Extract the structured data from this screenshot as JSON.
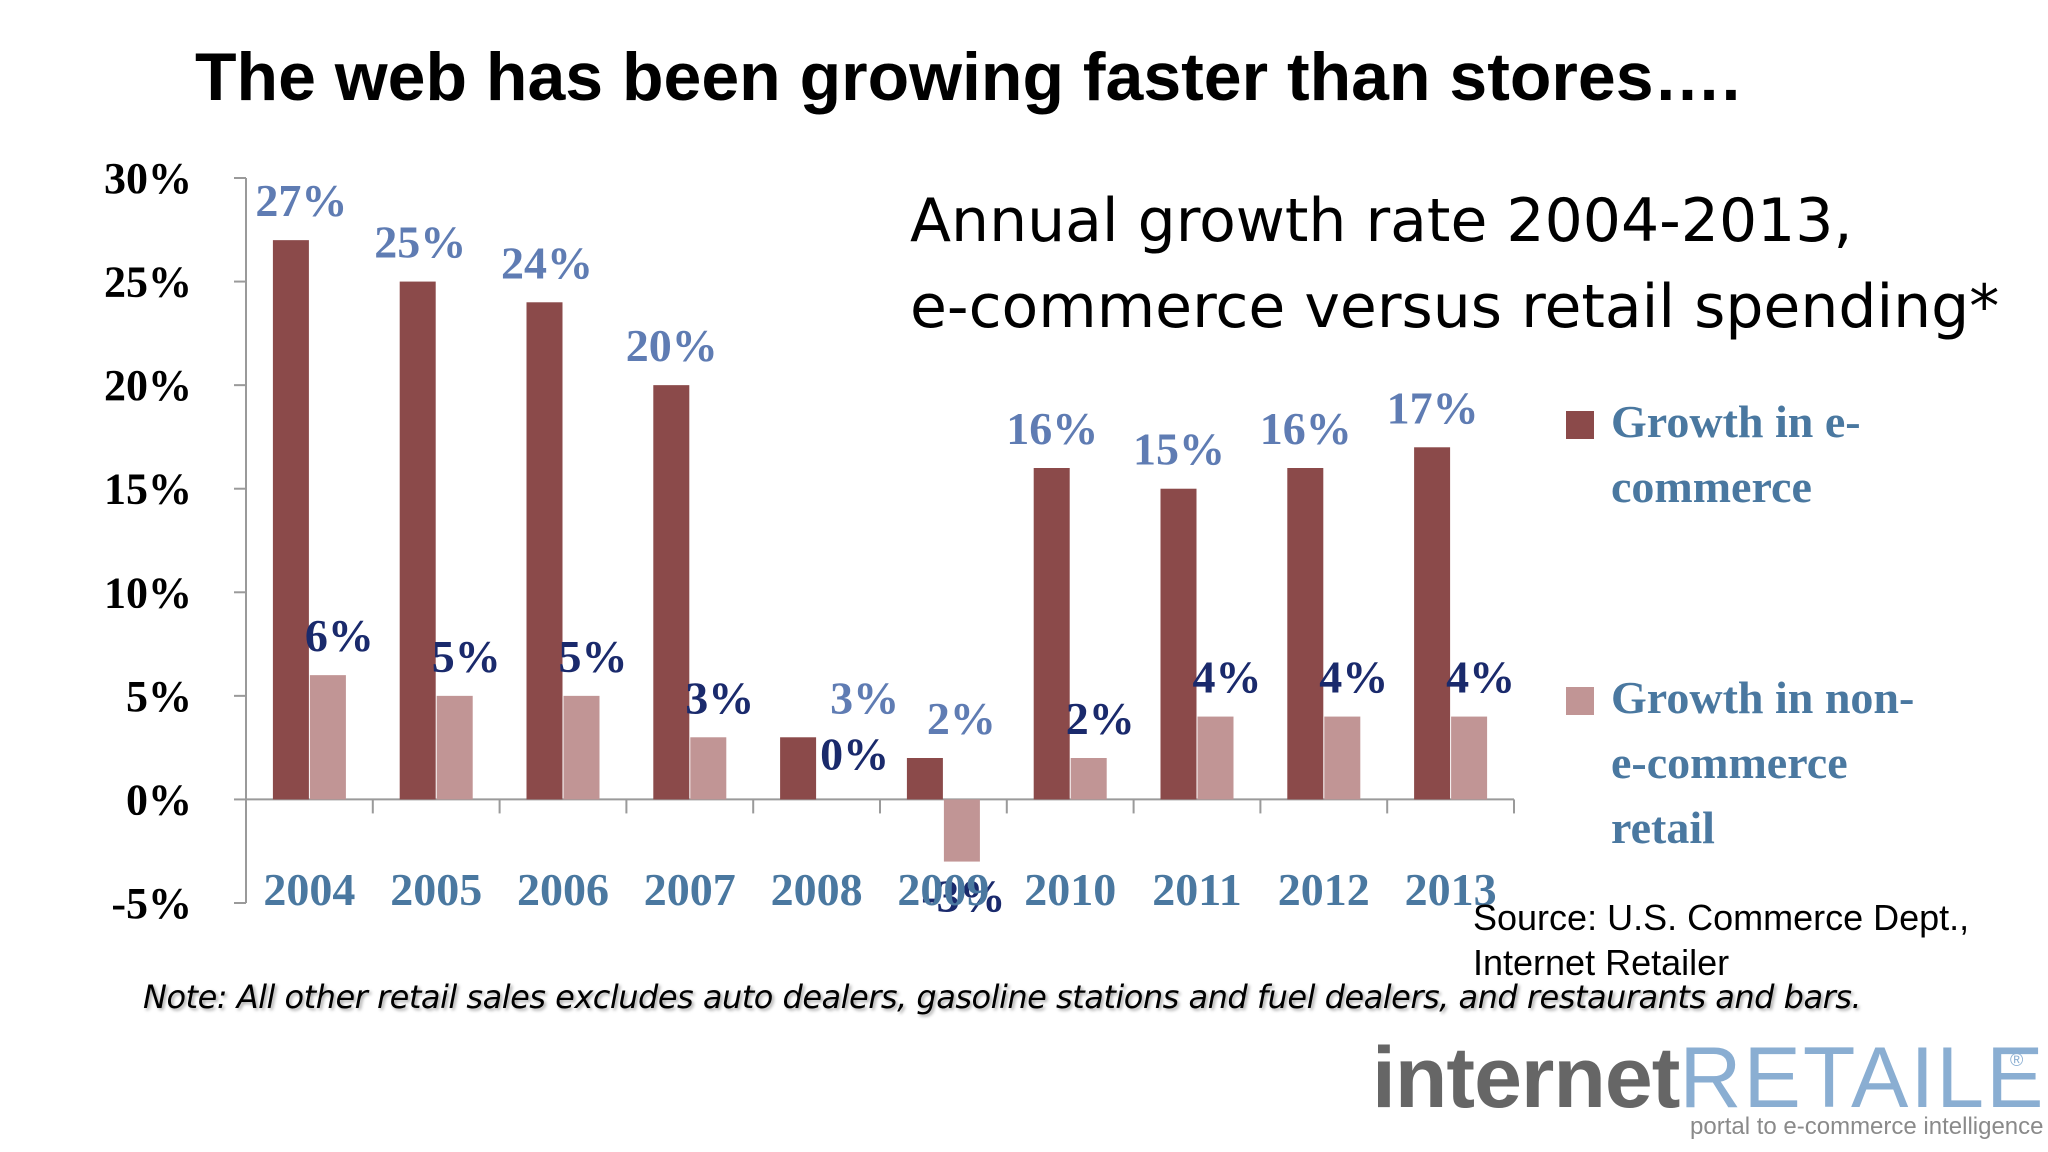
{
  "title": "The web has been growing faster than stores….",
  "subtitle_line1": "Annual growth rate 2004-2013,",
  "subtitle_line2": "e-commerce versus retail spending*",
  "source_line1": "Source: U.S. Commerce Dept.,",
  "source_line2": "Internet Retailer",
  "note": "Note: All other retail sales excludes auto dealers, gasoline stations and fuel dealers, and restaurants and bars.",
  "logo": {
    "word1": "internet",
    "word2": "RETAILER",
    "registered": "®",
    "tagline": "portal to e-commerce intelligence"
  },
  "legend": {
    "ecommerce_line1": "Growth in e-",
    "ecommerce_line2": "commerce",
    "retail_line1": "Growth in non-",
    "retail_line2": "e-commerce",
    "retail_line3": "retail"
  },
  "colors": {
    "ecommerce": "#8b4a4a",
    "retail": "#c19595",
    "ecommerce_label": "#5f7cb3",
    "retail_label": "#1a2a6c",
    "axis_label": "#4a78a0"
  },
  "chart_data": {
    "type": "bar",
    "categories": [
      "2004",
      "2005",
      "2006",
      "2007",
      "2008",
      "2009",
      "2010",
      "2011",
      "2012",
      "2013"
    ],
    "series": [
      {
        "name": "Growth in e-commerce",
        "values": [
          27,
          25,
          24,
          20,
          3,
          2,
          16,
          15,
          16,
          17
        ],
        "labels": [
          "27%",
          "25%",
          "24%",
          "20%",
          "3%",
          "2%",
          "16%",
          "15%",
          "16%",
          "17%"
        ]
      },
      {
        "name": "Growth in non-e-commerce retail",
        "values": [
          6,
          5,
          5,
          3,
          0,
          -3,
          2,
          4,
          4,
          4
        ],
        "labels": [
          "6%",
          "5%",
          "5%",
          "3%",
          "0%",
          "-3%",
          "2%",
          "4%",
          "4%",
          "4%"
        ]
      }
    ],
    "ylim": [
      -5,
      30
    ],
    "yticks": [
      -5,
      0,
      5,
      10,
      15,
      20,
      25,
      30
    ],
    "ytick_labels": [
      "-5%",
      "0%",
      "5%",
      "10%",
      "15%",
      "20%",
      "25%",
      "30%"
    ],
    "legend_position": "right"
  }
}
